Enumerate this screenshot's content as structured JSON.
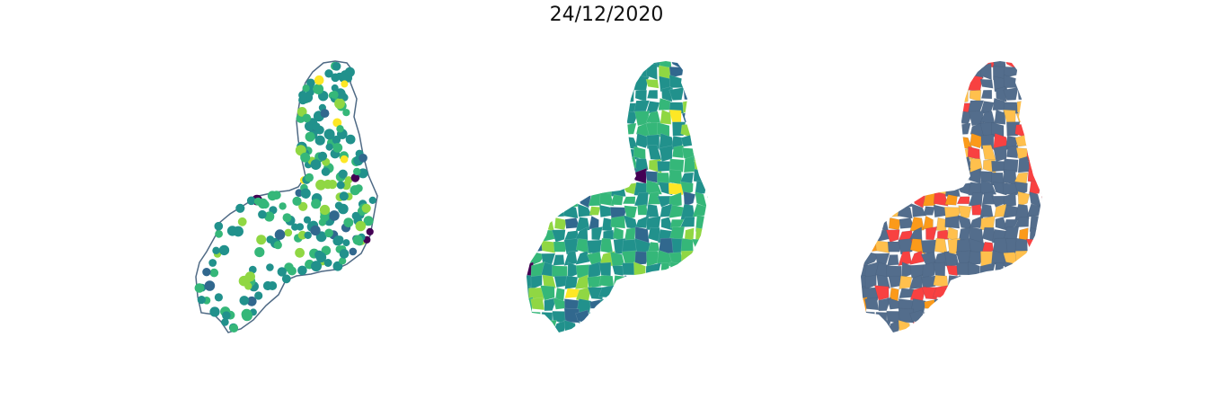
{
  "title": "24/12/2020",
  "colors": {
    "outline": "#4f6a85",
    "viridis": [
      "#440154",
      "#31688e",
      "#21918c",
      "#35b779",
      "#90d743",
      "#fde725"
    ],
    "categories": [
      "#536d8c",
      "#ffc04d",
      "#fb9a1a",
      "#f84141"
    ]
  },
  "panels": [
    {
      "name": "point-map"
    },
    {
      "name": "choropleth-continuous"
    },
    {
      "name": "choropleth-categorical"
    }
  ]
}
